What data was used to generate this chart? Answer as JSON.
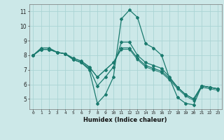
{
  "xlabel": "Humidex (Indice chaleur)",
  "x_values": [
    0,
    1,
    2,
    3,
    4,
    5,
    6,
    7,
    8,
    9,
    10,
    11,
    12,
    13,
    14,
    15,
    16,
    17,
    18,
    19,
    20,
    21,
    22,
    23
  ],
  "line1": [
    8.0,
    8.5,
    8.5,
    8.2,
    8.1,
    7.7,
    7.5,
    7.0,
    4.7,
    5.3,
    6.5,
    10.5,
    11.1,
    10.6,
    8.8,
    8.5,
    8.0,
    6.4,
    5.1,
    4.7,
    4.6,
    5.9,
    5.8,
    5.7
  ],
  "line2": [
    8.0,
    8.4,
    8.4,
    8.2,
    8.1,
    7.7,
    7.5,
    7.1,
    5.9,
    6.5,
    7.2,
    8.9,
    8.9,
    8.0,
    7.5,
    7.3,
    7.1,
    6.5,
    5.8,
    5.3,
    5.0,
    5.9,
    5.8,
    5.7
  ],
  "line3": [
    8.0,
    8.4,
    8.4,
    8.2,
    8.1,
    7.8,
    7.6,
    7.2,
    6.5,
    7.0,
    7.5,
    8.5,
    8.5,
    7.8,
    7.3,
    7.1,
    6.9,
    6.4,
    5.8,
    5.3,
    5.0,
    5.9,
    5.8,
    5.7
  ],
  "line4": [
    8.0,
    8.4,
    8.4,
    8.2,
    8.1,
    7.8,
    7.6,
    7.2,
    6.5,
    7.0,
    7.5,
    8.4,
    8.4,
    7.7,
    7.2,
    7.0,
    6.8,
    6.3,
    5.7,
    5.2,
    4.9,
    5.8,
    5.7,
    5.6
  ],
  "line_color": "#1a7a6e",
  "bg_color": "#cce8e8",
  "grid_color": "#aad4d4",
  "ylim": [
    4.3,
    11.5
  ],
  "yticks": [
    5,
    6,
    7,
    8,
    9,
    10,
    11
  ],
  "xlim": [
    -0.5,
    23.5
  ]
}
